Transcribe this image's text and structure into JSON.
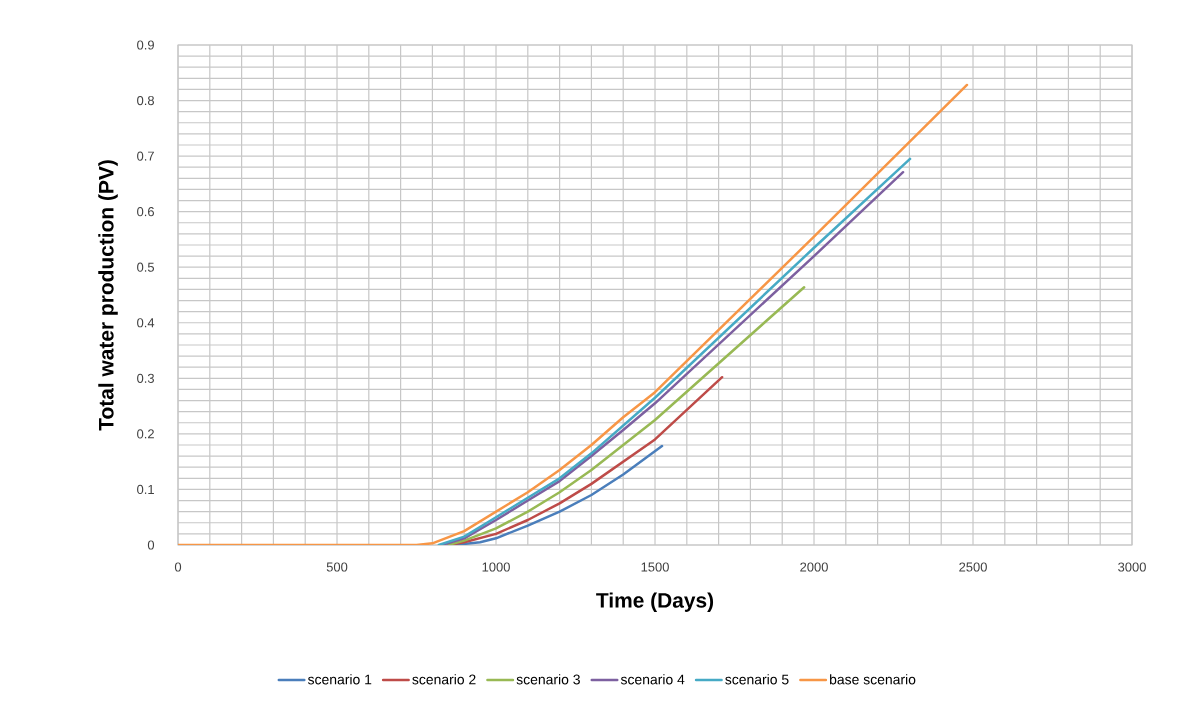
{
  "chart_data": {
    "type": "line",
    "xlabel": "Time (Days)",
    "ylabel": "Total water production (PV)",
    "xlim": [
      0,
      3000
    ],
    "xticks": [
      0,
      500,
      1000,
      1500,
      2000,
      2500,
      3000
    ],
    "ylim": [
      0,
      0.9
    ],
    "yticks": [
      0,
      0.1,
      0.2,
      0.3,
      0.4,
      0.5,
      0.6,
      0.7,
      0.8,
      0.9
    ],
    "grid": true,
    "legend": "bottom",
    "marker": "none",
    "line_style": "solid",
    "series": [
      {
        "name": "scenario 1",
        "color": "#4a7ebb",
        "x": [
          870,
          950,
          1000,
          1100,
          1200,
          1300,
          1400,
          1522
        ],
        "values": [
          0,
          0.005,
          0.012,
          0.035,
          0.06,
          0.09,
          0.127,
          0.178
        ]
      },
      {
        "name": "scenario 2",
        "color": "#be4b48",
        "x": [
          850,
          900,
          1000,
          1100,
          1200,
          1300,
          1400,
          1500,
          1711
        ],
        "values": [
          0,
          0.005,
          0.02,
          0.045,
          0.075,
          0.11,
          0.15,
          0.19,
          0.302
        ]
      },
      {
        "name": "scenario 3",
        "color": "#98b954",
        "x": [
          850,
          900,
          1000,
          1100,
          1200,
          1300,
          1400,
          1500,
          1969
        ],
        "values": [
          0,
          0.008,
          0.03,
          0.06,
          0.095,
          0.135,
          0.18,
          0.225,
          0.464
        ]
      },
      {
        "name": "scenario 4",
        "color": "#7d60a0",
        "x": [
          830,
          900,
          1000,
          1100,
          1200,
          1300,
          1400,
          1500,
          2000,
          2280
        ],
        "values": [
          0,
          0.012,
          0.045,
          0.08,
          0.115,
          0.16,
          0.207,
          0.255,
          0.52,
          0.671
        ]
      },
      {
        "name": "scenario 5",
        "color": "#46aac5",
        "x": [
          820,
          900,
          1000,
          1100,
          1200,
          1300,
          1400,
          1500,
          2000,
          2302
        ],
        "values": [
          0,
          0.015,
          0.05,
          0.085,
          0.12,
          0.165,
          0.215,
          0.265,
          0.535,
          0.695
        ]
      },
      {
        "name": "base scenario",
        "color": "#f79646",
        "x": [
          0,
          750,
          800,
          900,
          1000,
          1100,
          1200,
          1300,
          1400,
          1500,
          2000,
          2481
        ],
        "values": [
          0,
          0,
          0.003,
          0.025,
          0.06,
          0.095,
          0.135,
          0.18,
          0.23,
          0.275,
          0.555,
          0.828
        ]
      }
    ]
  }
}
